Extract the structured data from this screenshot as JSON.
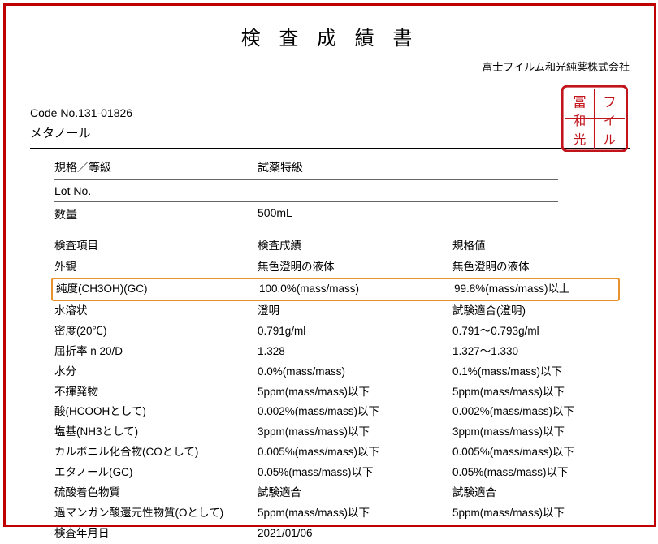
{
  "title": "検 査 成 績 書",
  "company": "富士フイルム和光純薬株式会社",
  "code_label": "Code No.131-01826",
  "product": "メタノール",
  "meta": {
    "grade_label": "規格／等級",
    "grade_value": "試薬特級",
    "lot_label": "Lot No.",
    "lot_value": "",
    "qty_label": "数量",
    "qty_value": "500mL"
  },
  "headers": {
    "c1": "検査項目",
    "c2": "検査成績",
    "c3": "規格値"
  },
  "row_before_highlight": {
    "c1": "外観",
    "c2": "無色澄明の液体",
    "c3": "無色澄明の液体"
  },
  "highlight_row": {
    "c1": "純度(CH3OH)(GC)",
    "c2": "100.0%(mass/mass)",
    "c3": "99.8%(mass/mass)以上"
  },
  "rows_after": [
    {
      "c1": "水溶状",
      "c2": "澄明",
      "c3": "試験適合(澄明)"
    },
    {
      "c1": "密度(20℃)",
      "c2": "0.791g/ml",
      "c3": "0.791～0.793g/ml"
    },
    {
      "c1": "屈折率 n 20/D",
      "c2": "1.328",
      "c3": "1.327～1.330"
    },
    {
      "c1": "水分",
      "c2": "0.0%(mass/mass)",
      "c3": "0.1%(mass/mass)以下"
    },
    {
      "c1": "不揮発物",
      "c2": "5ppm(mass/mass)以下",
      "c3": "5ppm(mass/mass)以下"
    },
    {
      "c1": "酸(HCOOHとして)",
      "c2": "0.002%(mass/mass)以下",
      "c3": "0.002%(mass/mass)以下"
    },
    {
      "c1": "塩基(NH3として)",
      "c2": "3ppm(mass/mass)以下",
      "c3": "3ppm(mass/mass)以下"
    },
    {
      "c1": "カルボニル化合物(COとして)",
      "c2": "0.005%(mass/mass)以下",
      "c3": "0.005%(mass/mass)以下"
    },
    {
      "c1": "エタノール(GC)",
      "c2": "0.05%(mass/mass)以下",
      "c3": "0.05%(mass/mass)以下"
    },
    {
      "c1": "硫酸着色物質",
      "c2": "試験適合",
      "c3": "試験適合"
    },
    {
      "c1": "過マンガン酸還元性物質(Oとして)",
      "c2": "5ppm(mass/mass)以下",
      "c3": "5ppm(mass/mass)以下"
    },
    {
      "c1": "検査年月日",
      "c2": "2021/01/06",
      "c3": ""
    }
  ],
  "colors": {
    "border": "#c00000",
    "highlight": "#e8922f",
    "seal": "#c2151b",
    "text": "#000000"
  }
}
